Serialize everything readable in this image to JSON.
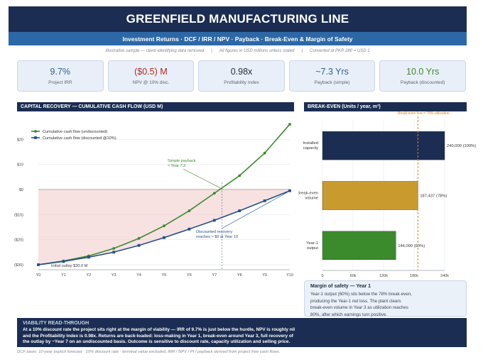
{
  "header": {
    "title": "GREENFIELD MANUFACTURING LINE",
    "subtitle": "Investment Returns  ·  DCF / IRR / NPV  ·  Payback  ·  Break-Even & Margin of Safety",
    "notes": [
      "Illustrative sample — client-identifying data removed",
      "|",
      "All figures in USD millions unless stated",
      "|",
      "Converted at PKR 280 = USD 1"
    ]
  },
  "kpis": [
    {
      "value": "9.7%",
      "label": "Project IRR",
      "color": "#2d5f99"
    },
    {
      "value": "($0.5) M",
      "label": "NPV @ 10% disc.",
      "color": "#b22a1f"
    },
    {
      "value": "0.98x",
      "label": "Profitability Index",
      "color": "#1f2a3c"
    },
    {
      "value": "~7.3 Yrs",
      "label": "Payback (simple)",
      "color": "#2d5f99"
    },
    {
      "value": "10.0 Yrs",
      "label": "Payback (discounted)",
      "color": "#3b8a2c"
    }
  ],
  "sections": {
    "left": "CAPITAL RECOVERY — CUMULATIVE CASH FLOW  (USD M)",
    "right": "BREAK-EVEN  (Units / year, m³)"
  },
  "chart_data": [
    {
      "type": "line",
      "x": [
        "Y0",
        "Y1",
        "Y2",
        "Y3",
        "Y4",
        "Y5",
        "Y6",
        "Y7",
        "Y8",
        "Y9",
        "Y10"
      ],
      "series": [
        {
          "name": "Cumulative cash flow (undiscounted)",
          "color": "#3b8a2c",
          "values": [
            -30,
            -28.5,
            -26.5,
            -23.5,
            -19.5,
            -14.5,
            -8.5,
            -1.5,
            5.5,
            14.5,
            26
          ]
        },
        {
          "name": "Cumulative cash flow (discounted @10%)",
          "color": "#244f8c",
          "values": [
            -30,
            -28.7,
            -27,
            -25,
            -22.3,
            -19.2,
            -15.8,
            -12.3,
            -8.5,
            -4.5,
            -0.5
          ]
        }
      ],
      "y_ticks": [
        "$20",
        "$10",
        "$0",
        "($10)",
        "($20)",
        "($30)"
      ],
      "y_tick_values": [
        20,
        10,
        0,
        -10,
        -20,
        -30
      ],
      "ylim": [
        -32,
        28
      ],
      "legend": "top-left",
      "grid": true,
      "annotations": {
        "simple_payback": "Simple payback\n≈ Year 7.3",
        "discounted_recovery": "Discounted recovery\nreaches ≈ $0 at Year 10",
        "initial_outlay": "Initial outlay  $30.0 M"
      },
      "payback_year": 7.3
    },
    {
      "type": "bar",
      "orientation": "horizontal",
      "categories": [
        "Installed\ncapacity",
        "Break-even\nvolume",
        "Year-1\noutput"
      ],
      "values": [
        240000,
        187437,
        144000
      ],
      "value_labels": [
        "240,000  (100%)",
        "187,437  (78%)",
        "144,000  (60%)"
      ],
      "colors": [
        "#1b2d52",
        "#c99a2e",
        "#3b8a2c"
      ],
      "x_ticks": [
        "0",
        "60k",
        "120k",
        "180k",
        "240k"
      ],
      "x_tick_values": [
        0,
        60000,
        120000,
        180000,
        240000
      ],
      "xlim": [
        0,
        240000
      ],
      "reference_line": {
        "value": 187437,
        "label": "Break-even line = 78% utilization",
        "color": "#d9822b"
      }
    }
  ],
  "safety": {
    "title": "Margin of safety — Year 1",
    "lines": [
      "Year-1 output (60%) sits below the 78% break-even,",
      "producing the Year-1 net loss. The plant clears",
      "break-even volume in Year 3 as utilization reaches",
      "80%, after which earnings turn positive."
    ]
  },
  "viability": {
    "title": "VIABILITY READ-THROUGH",
    "lines": [
      "At a 10% discount rate the project sits right at the margin of viability — IRR of 9.7% is just below the hurdle, NPV is roughly nil",
      "and the Profitability Index is 0.98x.  Returns are back-loaded: loss-making in Year 1, break-even around Year 3, full recovery of",
      "the outlay by ~Year 7 on an undiscounted basis.  Outcome is sensitive to discount rate, capacity utilization and selling price."
    ]
  },
  "footer": "DCF basis:  10-year explicit forecast · 10% discount rate · terminal value excluded.   IRR / NPV / PI / payback derived from project free cash flows."
}
